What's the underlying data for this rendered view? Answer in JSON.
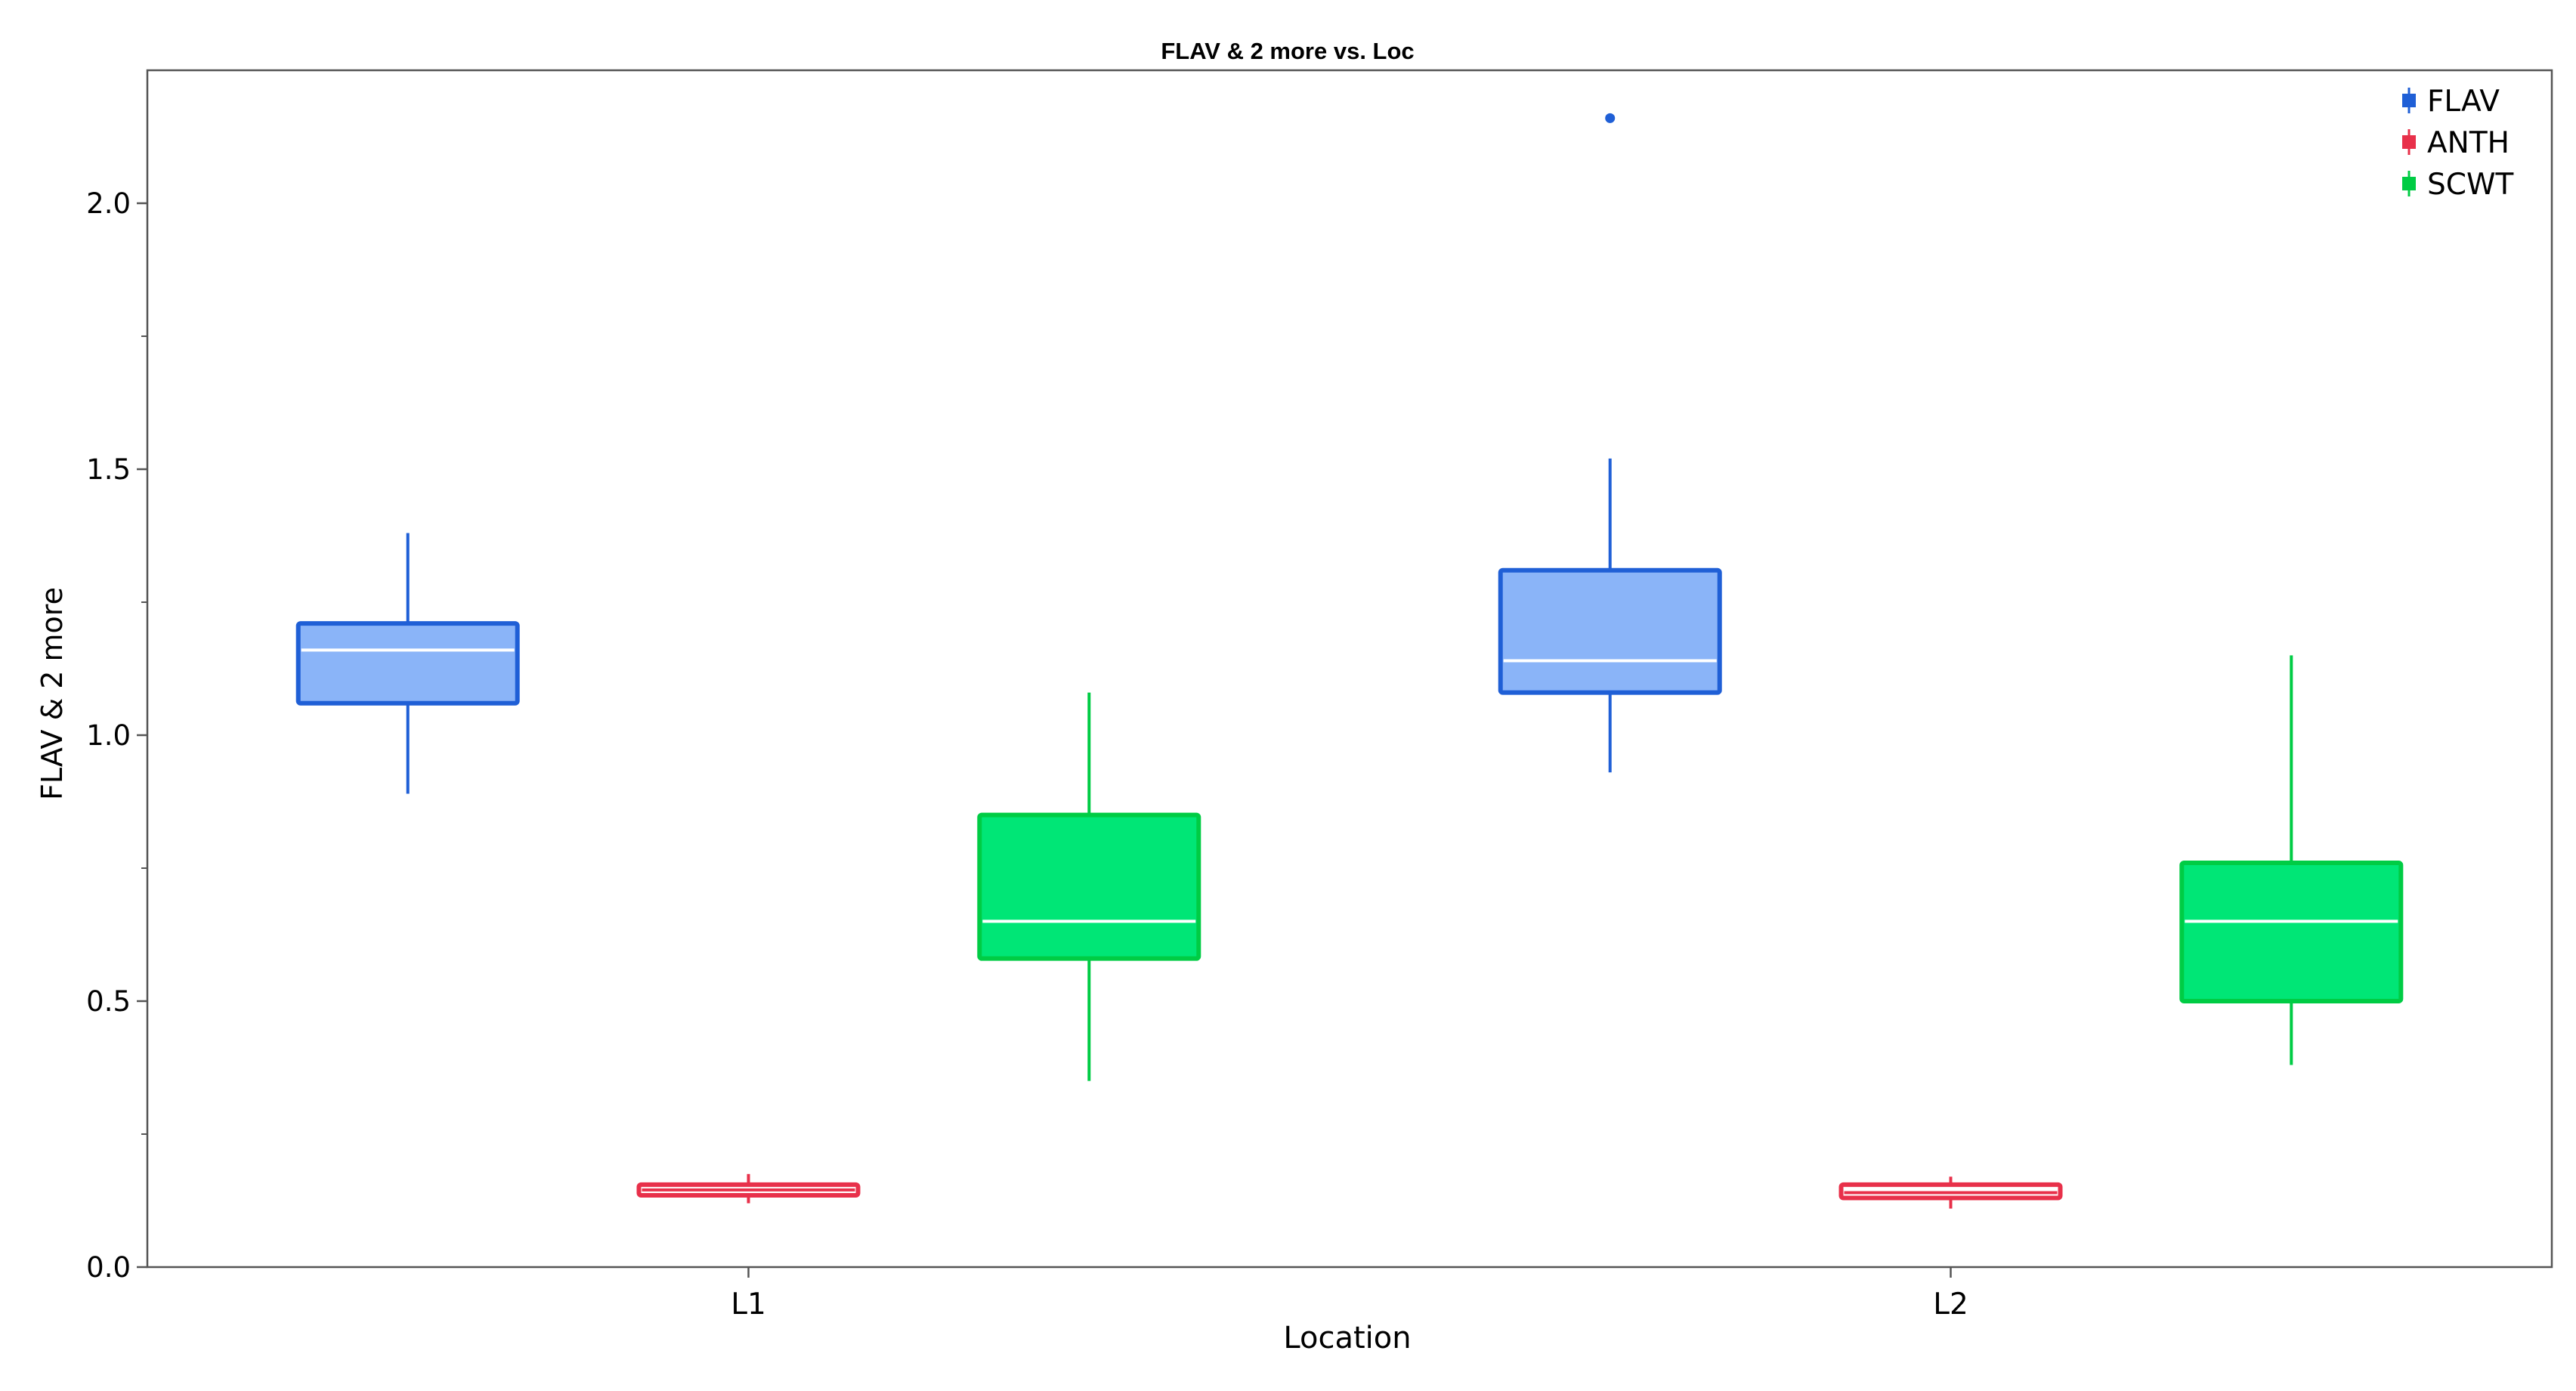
{
  "chart_data": {
    "type": "box",
    "title": "FLAV & 2 more vs. Loc",
    "xlabel": "Location",
    "ylabel": "FLAV & 2 more",
    "categories": [
      "L1",
      "L2"
    ],
    "ylim": [
      0,
      2.25
    ],
    "yticks": [
      0.0,
      0.5,
      1.0,
      1.5,
      2.0
    ],
    "ytick_labels": [
      "0.0",
      "0.5",
      "1.0",
      "1.5",
      "2.0"
    ],
    "grid": false,
    "legend_position": "top-right",
    "series": [
      {
        "name": "FLAV",
        "color": "#1f5fd6",
        "fill": "#8ab4f8",
        "median_color": "#ffffff",
        "boxes": [
          {
            "category": "L1",
            "min": 0.89,
            "q1": 1.06,
            "median": 1.16,
            "q3": 1.21,
            "max": 1.38,
            "outliers": []
          },
          {
            "category": "L2",
            "min": 0.93,
            "q1": 1.08,
            "median": 1.14,
            "q3": 1.31,
            "max": 1.52,
            "outliers": [
              2.16
            ]
          }
        ]
      },
      {
        "name": "ANTH",
        "color": "#e8304a",
        "fill": "#ffffff",
        "median_color": "#e8304a",
        "boxes": [
          {
            "category": "L1",
            "min": 0.12,
            "q1": 0.135,
            "median": 0.145,
            "q3": 0.155,
            "max": 0.175,
            "outliers": []
          },
          {
            "category": "L2",
            "min": 0.11,
            "q1": 0.13,
            "median": 0.14,
            "q3": 0.155,
            "max": 0.17,
            "outliers": []
          }
        ]
      },
      {
        "name": "SCWT",
        "color": "#00cc44",
        "fill": "#00e676",
        "median_color": "#ffffff",
        "boxes": [
          {
            "category": "L1",
            "min": 0.35,
            "q1": 0.58,
            "median": 0.65,
            "q3": 0.85,
            "max": 1.08,
            "outliers": []
          },
          {
            "category": "L2",
            "min": 0.38,
            "q1": 0.5,
            "median": 0.65,
            "q3": 0.76,
            "max": 1.15,
            "outliers": []
          }
        ]
      }
    ]
  }
}
